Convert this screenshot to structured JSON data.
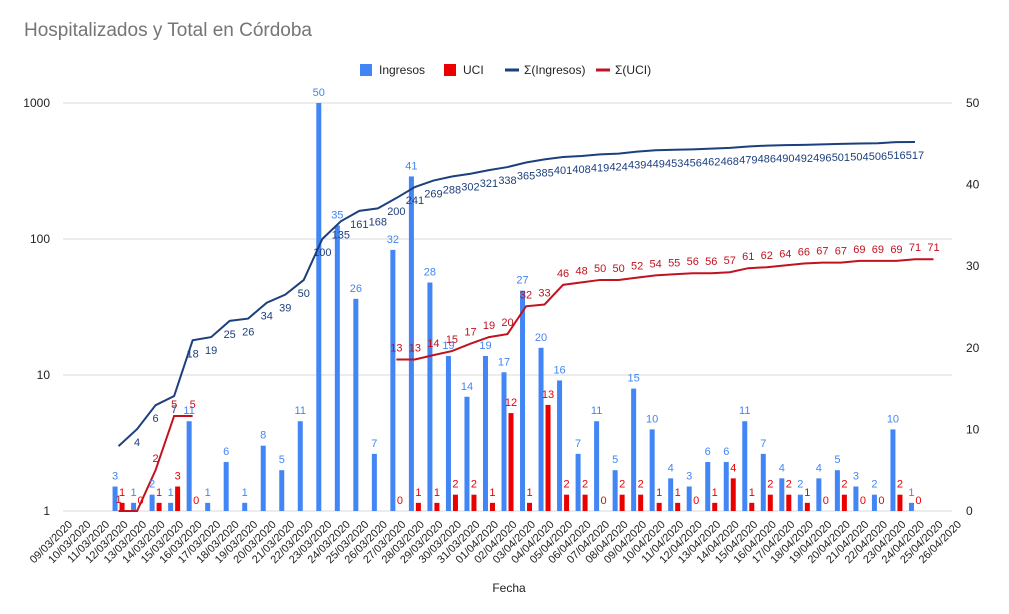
{
  "colors": {
    "ingresos": "#4285f4",
    "uci": "#ea0000",
    "sum_ingresos": "#1c3f7e",
    "sum_uci": "#c1121f",
    "grid": "#d9d9d9",
    "title": "#757575",
    "labels_cum": "#1c3f7e"
  },
  "chart_data": {
    "type": "bar",
    "title": "Hospitalizados y Total en Córdoba",
    "xlabel": "Fecha",
    "ylabel": "",
    "left_axis": {
      "scale": "log",
      "ylim": [
        1,
        1000
      ],
      "ticks": [
        "1",
        "10",
        "100",
        "1000"
      ]
    },
    "right_axis": {
      "scale": "linear",
      "ylim": [
        0,
        50
      ],
      "ticks": [
        "0",
        "10",
        "20",
        "30",
        "40",
        "50"
      ]
    },
    "grid": true,
    "legend_position": "top",
    "legend": [
      "Ingresos",
      "UCI",
      "Σ(Ingresos)",
      "Σ(UCI)"
    ],
    "categories": [
      "09/03/2020",
      "10/03/2020",
      "11/03/2020",
      "12/03/2020",
      "13/03/2020",
      "14/03/2020",
      "15/03/2020",
      "16/03/2020",
      "17/03/2020",
      "18/03/2020",
      "19/03/2020",
      "20/03/2020",
      "21/03/2020",
      "22/03/2020",
      "23/03/2020",
      "24/03/2020",
      "25/03/2020",
      "26/03/2020",
      "27/03/2020",
      "28/03/2020",
      "29/03/2020",
      "30/03/2020",
      "31/03/2020",
      "01/04/2020",
      "02/04/2020",
      "03/04/2020",
      "04/04/2020",
      "05/04/2020",
      "06/04/2020",
      "07/04/2020",
      "08/04/2020",
      "09/04/2020",
      "10/04/2020",
      "11/04/2020",
      "12/04/2020",
      "13/04/2020",
      "14/04/2020",
      "15/04/2020",
      "16/04/2020",
      "17/04/2020",
      "18/04/2020",
      "19/04/2020",
      "20/04/2020",
      "21/04/2020",
      "22/04/2020",
      "23/04/2020",
      "24/04/2020",
      "25/04/2020",
      "26/04/2020"
    ],
    "series": [
      {
        "name": "Ingresos",
        "type": "bar",
        "axis": "right",
        "values": [
          null,
          null,
          null,
          3,
          1,
          2,
          1,
          11,
          1,
          6,
          1,
          8,
          5,
          11,
          50,
          35,
          26,
          7,
          32,
          41,
          28,
          19,
          14,
          19,
          17,
          27,
          20,
          16,
          7,
          11,
          5,
          15,
          10,
          4,
          3,
          6,
          6,
          11,
          7,
          4,
          2,
          4,
          5,
          3,
          2,
          10,
          1,
          null,
          null
        ],
        "labels": [
          "",
          "",
          "",
          "3",
          "1",
          "2",
          "1",
          "11",
          "1",
          "6",
          "1",
          "8",
          "5",
          "11",
          "50",
          "35",
          "26",
          "7",
          "32",
          "41",
          "28",
          "19",
          "14",
          "19",
          "17",
          "27",
          "20",
          "16",
          "7",
          "11",
          "5",
          "15",
          "10",
          "4",
          "3",
          "6",
          "6",
          "11",
          "7",
          "4",
          "2",
          "4",
          "5",
          "3",
          "2",
          "10",
          "1",
          "",
          ""
        ]
      },
      {
        "name": "UCI",
        "type": "bar",
        "axis": "right",
        "values": [
          null,
          null,
          null,
          1,
          0,
          1,
          3,
          0,
          null,
          null,
          null,
          null,
          null,
          null,
          null,
          null,
          null,
          null,
          0,
          1,
          1,
          2,
          2,
          1,
          12,
          1,
          13,
          2,
          2,
          0,
          2,
          2,
          1,
          1,
          0,
          1,
          4,
          1,
          2,
          2,
          1,
          0,
          2,
          0,
          0,
          2,
          0,
          null,
          null
        ],
        "labels": [
          "",
          "",
          "",
          "1",
          "0",
          "1",
          "3",
          "0",
          "",
          "",
          "",
          "",
          "",
          "",
          "",
          "",
          "",
          "",
          "0",
          "1",
          "1",
          "2",
          "2",
          "1",
          "12",
          "1",
          "13",
          "2",
          "2",
          "0",
          "2",
          "2",
          "1",
          "1",
          "0",
          "1",
          "4",
          "1",
          "2",
          "2",
          "1",
          "0",
          "2",
          "0",
          "0",
          "2",
          "0",
          "",
          ""
        ]
      },
      {
        "name": "Σ(Ingresos)",
        "type": "line",
        "axis": "left",
        "values": [
          null,
          null,
          null,
          3,
          4,
          6,
          7,
          18,
          19,
          25,
          26,
          34,
          39,
          50,
          100,
          135,
          161,
          168,
          200,
          241,
          269,
          288,
          302,
          321,
          338,
          365,
          385,
          401,
          408,
          419,
          424,
          439,
          449,
          453,
          456,
          462,
          468,
          479,
          486,
          490,
          492,
          496,
          501,
          504,
          506,
          516,
          517,
          null,
          null
        ],
        "labels": [
          "",
          "",
          "",
          "",
          "4",
          "6",
          "7",
          "18",
          "19",
          "25",
          "26",
          "34",
          "39",
          "50",
          "100",
          "135",
          "161",
          "168",
          "200",
          "241",
          "269",
          "288",
          "302",
          "321",
          "338",
          "365",
          "385",
          "401",
          "408",
          "419",
          "424",
          "439",
          "449",
          "453",
          "456",
          "462",
          "468",
          "479",
          "486",
          "490",
          "492",
          "496",
          "501",
          "504",
          "506",
          "516",
          "517",
          "",
          ""
        ]
      },
      {
        "name": "Σ(UCI)",
        "type": "line",
        "axis": "left",
        "values": [
          null,
          null,
          null,
          1,
          1,
          2,
          5,
          5,
          null,
          null,
          null,
          null,
          null,
          null,
          null,
          null,
          null,
          null,
          13,
          13,
          14,
          15,
          17,
          19,
          20,
          32,
          33,
          46,
          48,
          50,
          50,
          52,
          54,
          55,
          56,
          56,
          57,
          61,
          62,
          64,
          66,
          67,
          67,
          69,
          69,
          69,
          71,
          71,
          null
        ],
        "labels": [
          "",
          "",
          "",
          "1",
          "",
          "2",
          "5",
          "5",
          "",
          "",
          "",
          "",
          "",
          "",
          "",
          "",
          "",
          "",
          "13",
          "13",
          "14",
          "15",
          "17",
          "19",
          "20",
          "32",
          "33",
          "46",
          "48",
          "50",
          "50",
          "52",
          "54",
          "55",
          "56",
          "56",
          "57",
          "61",
          "62",
          "64",
          "66",
          "67",
          "67",
          "69",
          "69",
          "69",
          "71",
          "71",
          ""
        ]
      }
    ]
  }
}
